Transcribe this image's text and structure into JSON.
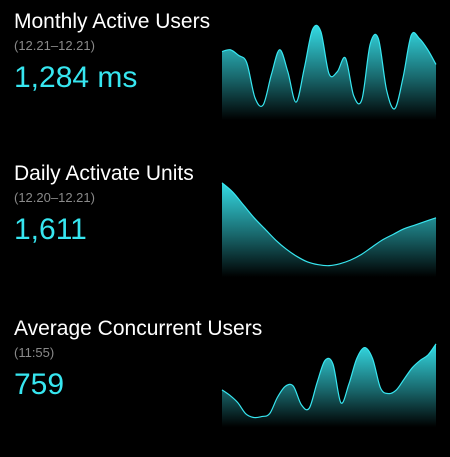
{
  "colors": {
    "background": "#000000",
    "accent": "#37e6f0",
    "title": "#ffffff",
    "subtitle": "#8a8a8a"
  },
  "metrics": [
    {
      "title": "Monthly Active Users",
      "range": "(12.21–12.21)",
      "value": "1,284 ms",
      "series": [
        0.7,
        0.72,
        0.66,
        0.58,
        0.2,
        0.12,
        0.45,
        0.72,
        0.48,
        0.15,
        0.52,
        0.94,
        0.92,
        0.46,
        0.48,
        0.63,
        0.22,
        0.18,
        0.78,
        0.84,
        0.28,
        0.08,
        0.42,
        0.88,
        0.84,
        0.72,
        0.56
      ]
    },
    {
      "title": "Daily Activate Units",
      "range": "(12.20–12.21)",
      "value": "1,611",
      "series": [
        0.98,
        0.88,
        0.74,
        0.6,
        0.48,
        0.36,
        0.26,
        0.18,
        0.12,
        0.09,
        0.08,
        0.1,
        0.14,
        0.2,
        0.28,
        0.36,
        0.42,
        0.48,
        0.52,
        0.56,
        0.6
      ]
    },
    {
      "title": "Average Concurrent Users",
      "range": "(11:55)",
      "value": "759",
      "series": [
        0.36,
        0.3,
        0.22,
        0.1,
        0.06,
        0.07,
        0.1,
        0.28,
        0.4,
        0.4,
        0.2,
        0.16,
        0.44,
        0.68,
        0.64,
        0.22,
        0.42,
        0.7,
        0.82,
        0.7,
        0.38,
        0.32,
        0.36,
        0.48,
        0.6,
        0.68,
        0.74,
        0.86
      ]
    }
  ]
}
